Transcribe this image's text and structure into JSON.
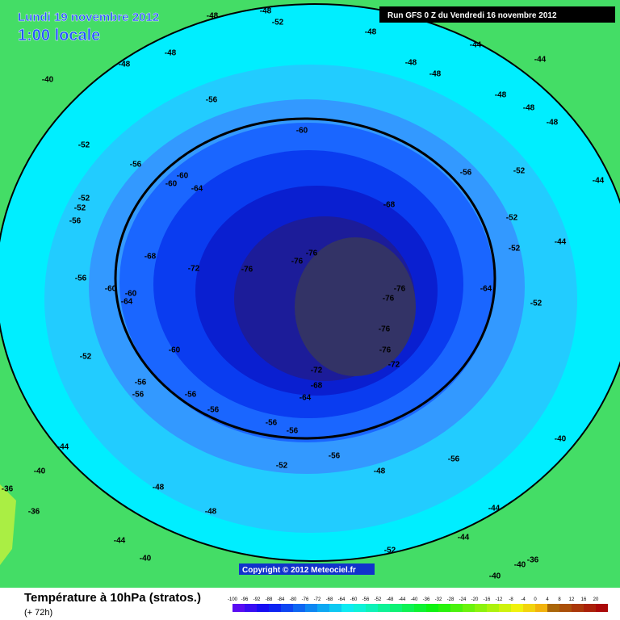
{
  "header": {
    "date": "Lundi 19 novembre 2012",
    "time": "1:00 locale",
    "run": "Run GFS 0 Z du Vendredi 16 novembre 2012"
  },
  "copyright": "Copyright © 2012 Meteociel.fr",
  "footer": {
    "title": "Température à 10hPa (stratos.)",
    "lead": "(+ 72h)"
  },
  "legend": {
    "ticks": [
      -100,
      -96,
      -92,
      -88,
      -84,
      -80,
      -76,
      -72,
      -68,
      -64,
      -60,
      -56,
      -52,
      -48,
      -44,
      -40,
      -36,
      -32,
      -28,
      -24,
      -20,
      -16,
      -12,
      -8,
      -4,
      0,
      4,
      8,
      12,
      16,
      20
    ]
  },
  "contour_labels": [
    -48,
    -48,
    -52,
    -48,
    -44,
    -48,
    -48,
    -44,
    -48,
    -48,
    -40,
    -48,
    -48,
    -48,
    -52,
    -56,
    -60,
    -56,
    -60,
    -60,
    -64,
    -56,
    -52,
    -44,
    -52,
    -52,
    -56,
    -68,
    -52,
    -44,
    -68,
    -72,
    -76,
    -76,
    -76,
    -52,
    -56,
    -60,
    -60,
    -64,
    -76,
    -76,
    -64,
    -52,
    -76,
    -76,
    -72,
    -60,
    -52,
    -72,
    -68,
    -64,
    -56,
    -56,
    -56,
    -56,
    -56,
    -56,
    -56,
    -56,
    -52,
    -48,
    -48,
    -48,
    -44,
    -40,
    -36,
    -36,
    -40,
    -44,
    -44,
    -52,
    -44,
    -40,
    -36,
    -40,
    -40
  ]
}
